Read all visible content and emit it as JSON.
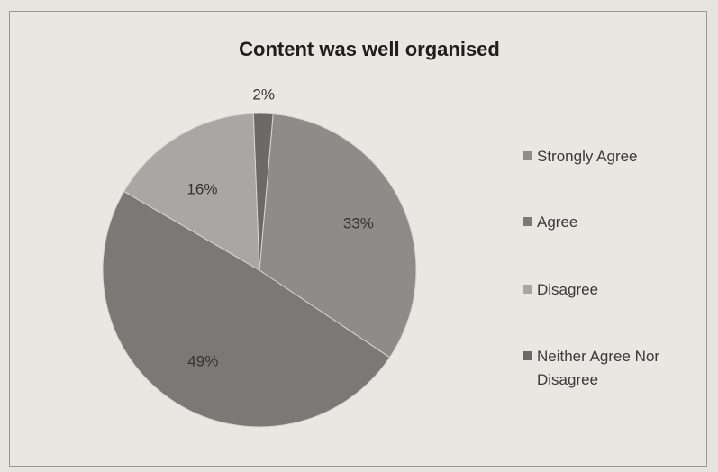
{
  "chart_data": {
    "type": "pie",
    "title": "Content was well organised",
    "categories": [
      "Strongly Agree",
      "Agree",
      "Disagree",
      "Neither Agree Nor Disagree"
    ],
    "values": [
      33,
      49,
      16,
      2
    ],
    "data_labels": [
      "33%",
      "49%",
      "16%",
      "2%"
    ],
    "legend_lines": [
      [
        "Strongly Agree"
      ],
      [
        "Agree"
      ],
      [
        "Disagree"
      ],
      [
        "Neither Agree Nor",
        "Disagree"
      ]
    ],
    "legend_position": "right",
    "colors": [
      "#8e8c88",
      "#7b7975",
      "#a9a7a3",
      "#6c6a66"
    ]
  }
}
